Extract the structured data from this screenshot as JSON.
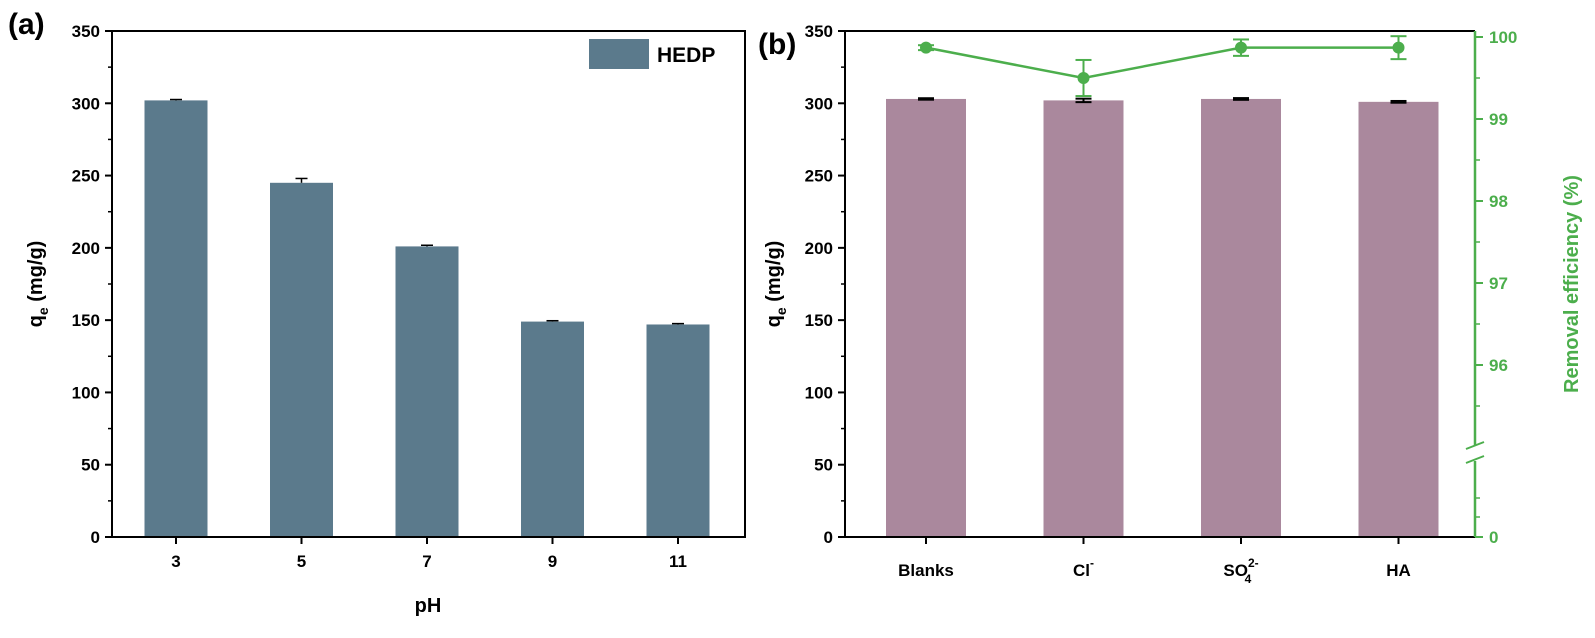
{
  "chart_data": [
    {
      "type": "bar",
      "panel_label": "(a)",
      "categories": [
        "3",
        "5",
        "7",
        "9",
        "11"
      ],
      "series": [
        {
          "name": "HEDP",
          "values": [
            302,
            245,
            201,
            149,
            147
          ],
          "errors": [
            0.6,
            3.0,
            0.8,
            0.6,
            0.6
          ],
          "color": "#5b7a8c"
        }
      ],
      "xlabel": "pH",
      "ylabel": {
        "main": "q",
        "sub": "e",
        "rest": " (mg/g)"
      },
      "ylim": [
        0,
        350
      ],
      "yticks": [
        "0",
        "50",
        "100",
        "150",
        "200",
        "250",
        "300",
        "350"
      ],
      "legend_position": "top-right",
      "grid": false
    },
    {
      "type": "bar+line",
      "panel_label": "(b)",
      "categories": [
        {
          "base": "Blanks",
          "sup": "",
          "sub": ""
        },
        {
          "base": "Cl",
          "sup": "-",
          "sub": ""
        },
        {
          "base": "SO",
          "sup": "2-",
          "sub": "4"
        },
        {
          "base": "HA",
          "sup": "",
          "sub": ""
        }
      ],
      "bar_series": {
        "values": [
          303,
          302,
          303,
          301
        ],
        "errors": [
          0.5,
          1.2,
          0.6,
          0.6
        ],
        "color": "#aa889d"
      },
      "line_series": {
        "values": [
          99.87,
          99.5,
          99.87,
          99.87
        ],
        "errors": [
          0.03,
          0.22,
          0.1,
          0.14
        ],
        "color": "#4cae4c"
      },
      "ylabel_left": {
        "main": "q",
        "sub": "e",
        "rest": " (mg/g)"
      },
      "ylabel_right": "Removal efficiency (%)",
      "ylim_left": [
        0,
        350
      ],
      "yticks_left": [
        "0",
        "50",
        "100",
        "150",
        "200",
        "250",
        "300",
        "350"
      ],
      "right_axis": {
        "type": "broken",
        "lower_tick": "0",
        "upper_range": [
          95,
          100
        ],
        "upper_ticks": [
          "96",
          "97",
          "98",
          "99",
          "100"
        ]
      },
      "grid": false
    }
  ]
}
